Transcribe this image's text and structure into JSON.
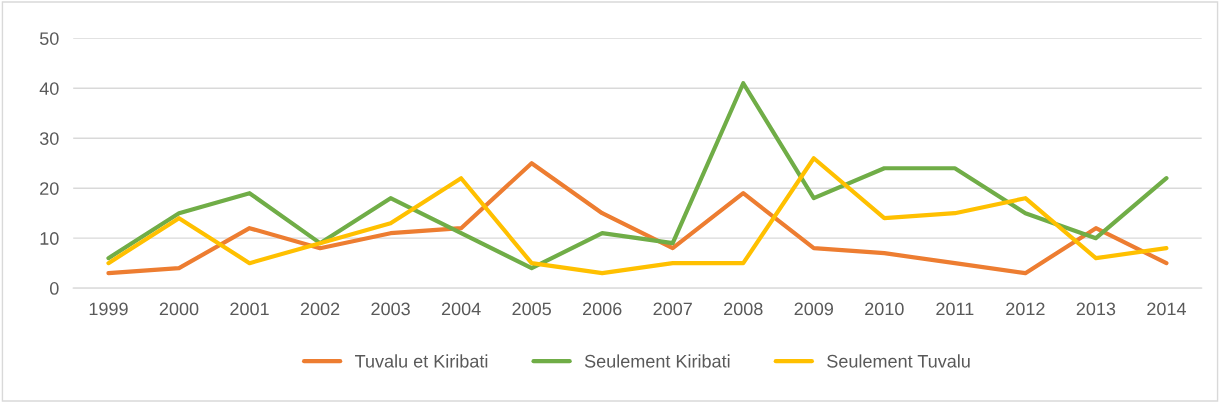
{
  "chart_data": {
    "type": "line",
    "categories": [
      "1999",
      "2000",
      "2001",
      "2002",
      "2003",
      "2004",
      "2005",
      "2006",
      "2007",
      "2008",
      "2009",
      "2010",
      "2011",
      "2012",
      "2013",
      "2014"
    ],
    "series": [
      {
        "name": "Tuvalu et Kiribati",
        "color": "#ed7d31",
        "values": [
          3,
          4,
          12,
          8,
          11,
          12,
          25,
          15,
          8,
          19,
          8,
          7,
          5,
          3,
          12,
          5
        ]
      },
      {
        "name": "Seulement Kiribati",
        "color": "#70ad47",
        "values": [
          6,
          15,
          19,
          9,
          18,
          11,
          4,
          11,
          9,
          41,
          18,
          24,
          24,
          15,
          10,
          22
        ]
      },
      {
        "name": "Seulement Tuvalu",
        "color": "#ffc000",
        "values": [
          5,
          14,
          5,
          9,
          13,
          22,
          5,
          3,
          5,
          5,
          26,
          14,
          15,
          18,
          6,
          8
        ]
      }
    ],
    "ylim": [
      0,
      50
    ],
    "yticks": [
      0,
      10,
      20,
      30,
      40,
      50
    ],
    "grid": "y",
    "legend": "bottom",
    "marker": "none",
    "line_style": "solid"
  }
}
